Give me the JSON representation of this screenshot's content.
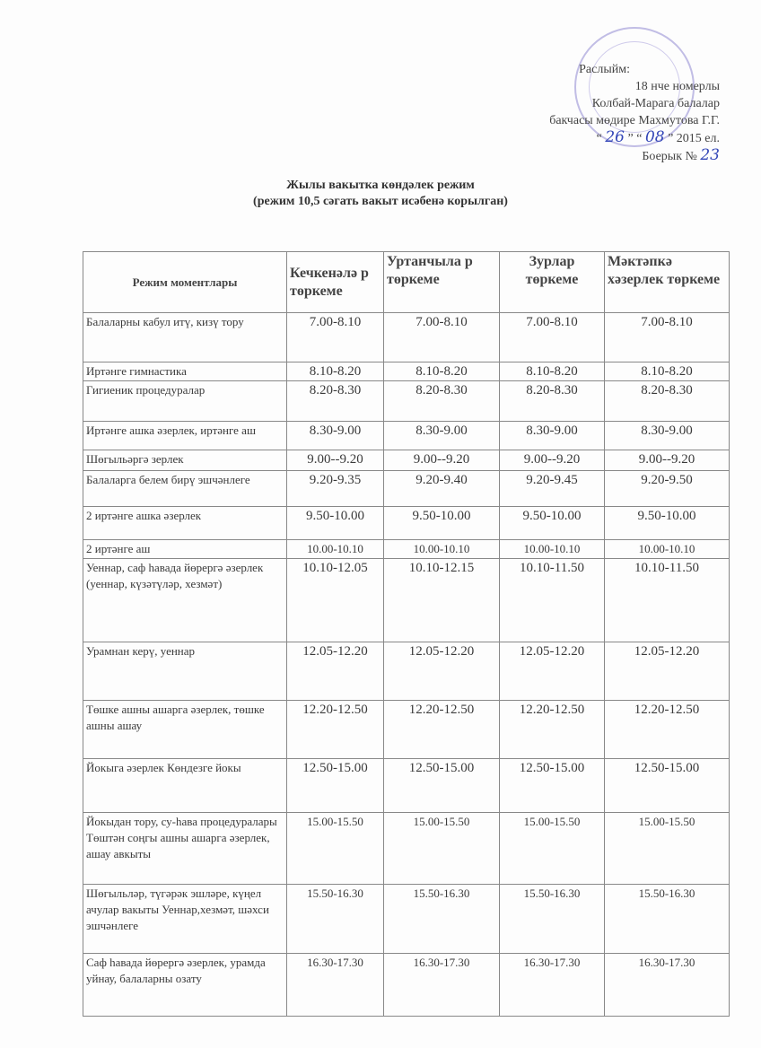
{
  "approval": {
    "label": "Раслыйм:",
    "line1": "18 нче номерлы",
    "line2": "Колбай-Марага балалар",
    "line3": "бакчасы мөдире Махмутова Г.Г.",
    "date_day": "26",
    "date_month": "08",
    "date_year_suffix": "2015 ел.",
    "order_label": "Боерык №",
    "order_number": "23",
    "stamp_color": "#786ec8"
  },
  "title": {
    "line1": "Жылы вакытка көндәлек режим",
    "line2": "(режим 10,5 сәгать вакыт исәбенә корылган)"
  },
  "table": {
    "headers": [
      "Режим моментлары",
      "Кечкенәлә р төркеме",
      "Уртанчыла р төркеме",
      "Зурлар төркеме",
      "Мәктәпкә хәзерлек төркеме"
    ],
    "rows": [
      {
        "activity": "Балаларны кабул итү, кизү тору",
        "times": [
          "7.00-8.10",
          "7.00-8.10",
          "7.00-8.10",
          "7.00-8.10"
        ]
      },
      {
        "activity": "Иртәнге гимнастика",
        "times": [
          "8.10-8.20",
          "8.10-8.20",
          "8.10-8.20",
          "8.10-8.20"
        ]
      },
      {
        "activity": "Гигиеник процедуралар",
        "times": [
          "8.20-8.30",
          "8.20-8.30",
          "8.20-8.30",
          "8.20-8.30"
        ]
      },
      {
        "activity": "Иртәнге ашка әзерлек, иртәнге аш",
        "times": [
          "8.30-9.00",
          "8.30-9.00",
          "8.30-9.00",
          "8.30-9.00"
        ]
      },
      {
        "activity": "Шөгыльәргә зерлек",
        "times": [
          "9.00--9.20",
          "9.00--9.20",
          "9.00--9.20",
          "9.00--9.20"
        ]
      },
      {
        "activity": "Балаларга белем бирү эшчәнлеге",
        "times": [
          "9.20-9.35",
          "9.20-9.40",
          "9.20-9.45",
          "9.20-9.50"
        ]
      },
      {
        "activity": "2 иртәнге ашка әзерлек",
        "times": [
          "9.50-10.00",
          "9.50-10.00",
          "9.50-10.00",
          "9.50-10.00"
        ]
      },
      {
        "activity": "2 иртәнге аш",
        "times": [
          "10.00-10.10",
          "10.00-10.10",
          "10.00-10.10",
          "10.00-10.10"
        ]
      },
      {
        "activity": "Уеннар, саф һавада йөрергә әзерлек (уеннар, күзәтүләр, хезмәт)",
        "times": [
          "10.10-12.05",
          "10.10-12.15",
          "10.10-11.50",
          "10.10-11.50"
        ]
      },
      {
        "activity": "Урамнан керү, уеннар",
        "times": [
          "12.05-12.20",
          "12.05-12.20",
          "12.05-12.20",
          "12.05-12.20"
        ]
      },
      {
        "activity": "Төшке ашны ашарга әзерлек, төшке ашны ашау",
        "times": [
          "12.20-12.50",
          "12.20-12.50",
          "12.20-12.50",
          "12.20-12.50"
        ]
      },
      {
        "activity": "Йокыга әзерлек Көндезге йокы",
        "times": [
          "12.50-15.00",
          "12.50-15.00",
          "12.50-15.00",
          "12.50-15.00"
        ]
      },
      {
        "activity": "Йокыдан тору, су-һава процедуралары Төштән соңгы ашны ашарга әзерлек, ашау авкыты",
        "times": [
          "15.00-15.50",
          "15.00-15.50",
          "15.00-15.50",
          "15.00-15.50"
        ]
      },
      {
        "activity": "Шөгыльләр, түгәрәк эшләре, күңел ачулар вакыты Уеннар,хезмәт, шәхси эшчәнлеге",
        "times": [
          "15.50-16.30",
          "15.50-16.30",
          "15.50-16.30",
          "15.50-16.30"
        ]
      },
      {
        "activity": "Саф һавада йөрергә әзерлек, урамда уйнау, балаларны озату",
        "times": [
          "16.30-17.30",
          "16.30-17.30",
          "16.30-17.30",
          "16.30-17.30"
        ]
      }
    ]
  }
}
